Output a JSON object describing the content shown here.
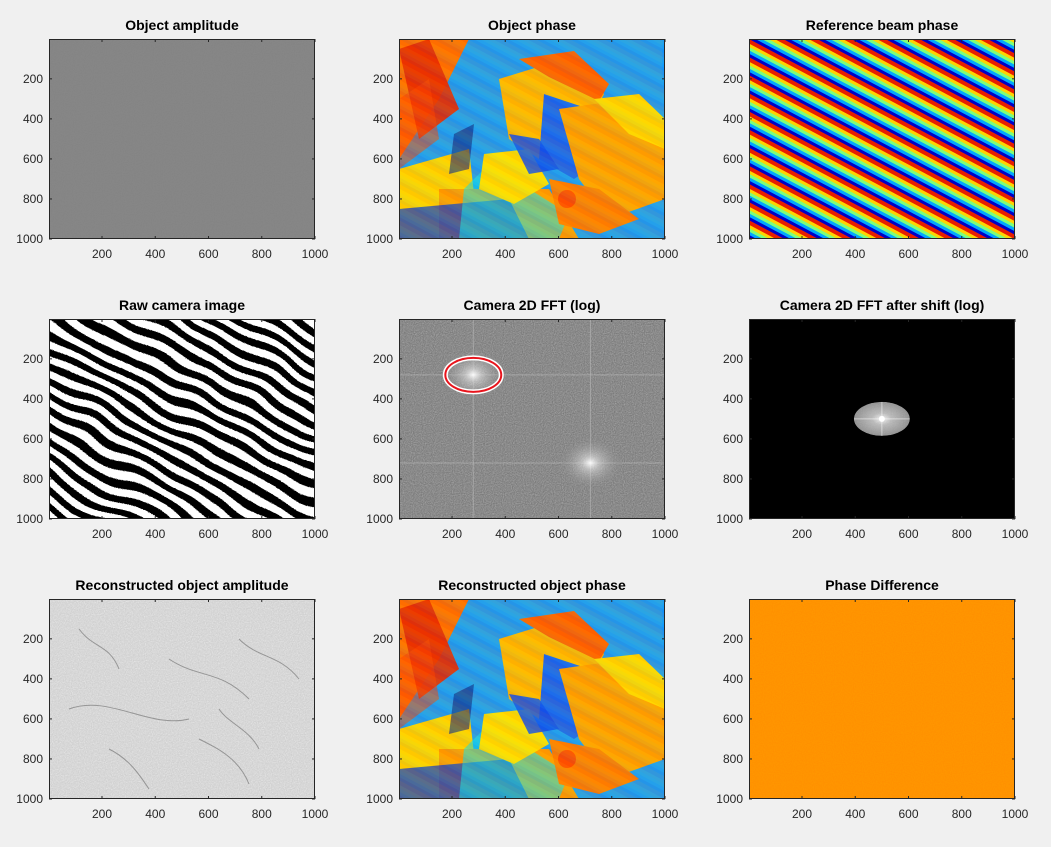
{
  "figure": {
    "background": "#f0f0f0"
  },
  "chart_data": [
    {
      "type": "heatmap",
      "title": "Object amplitude",
      "xticks": [
        200,
        400,
        600,
        800,
        1000
      ],
      "yticks": [
        200,
        400,
        600,
        800,
        1000
      ],
      "xlim": [
        1,
        1000
      ],
      "ylim": [
        1,
        1000
      ],
      "y_direction": "reverse",
      "colormap": "gray",
      "appearance": "uniform-mid-gray"
    },
    {
      "type": "heatmap",
      "title": "Object phase",
      "xticks": [
        200,
        400,
        600,
        800,
        1000
      ],
      "yticks": [
        200,
        400,
        600,
        800,
        1000
      ],
      "xlim": [
        1,
        1000
      ],
      "ylim": [
        1,
        1000
      ],
      "y_direction": "reverse",
      "colormap": "jet",
      "appearance": "photo-image"
    },
    {
      "type": "heatmap",
      "title": "Reference beam phase",
      "xticks": [
        200,
        400,
        600,
        800,
        1000
      ],
      "yticks": [
        200,
        400,
        600,
        800,
        1000
      ],
      "xlim": [
        1,
        1000
      ],
      "ylim": [
        1,
        1000
      ],
      "y_direction": "reverse",
      "colormap": "jet",
      "appearance": "diagonal-fringes"
    },
    {
      "type": "heatmap",
      "title": "Raw camera image",
      "xticks": [
        200,
        400,
        600,
        800,
        1000
      ],
      "yticks": [
        200,
        400,
        600,
        800,
        1000
      ],
      "xlim": [
        1,
        1000
      ],
      "ylim": [
        1,
        1000
      ],
      "y_direction": "reverse",
      "colormap": "gray",
      "appearance": "interference-fringes"
    },
    {
      "type": "heatmap",
      "title": "Camera 2D FFT (log)",
      "xticks": [
        200,
        400,
        600,
        800,
        1000
      ],
      "yticks": [
        200,
        400,
        600,
        800,
        1000
      ],
      "xlim": [
        1,
        1000
      ],
      "ylim": [
        1,
        1000
      ],
      "y_direction": "reverse",
      "colormap": "gray",
      "appearance": "fft-noise",
      "peaks": [
        {
          "x": 280,
          "y": 280
        },
        {
          "x": 720,
          "y": 720
        }
      ],
      "circle": {
        "cx": 280,
        "cy": 280,
        "rx": 105,
        "ry": 85,
        "color": "#e8141c"
      }
    },
    {
      "type": "heatmap",
      "title": "Camera 2D FFT after shift (log)",
      "xticks": [
        200,
        400,
        600,
        800,
        1000
      ],
      "yticks": [
        200,
        400,
        600,
        800,
        1000
      ],
      "xlim": [
        1,
        1000
      ],
      "ylim": [
        1,
        1000
      ],
      "y_direction": "reverse",
      "colormap": "gray",
      "appearance": "masked-fft",
      "ellipse": {
        "cx": 500,
        "cy": 500,
        "rx": 105,
        "ry": 85
      }
    },
    {
      "type": "heatmap",
      "title": "Reconstructed object amplitude",
      "xticks": [
        200,
        400,
        600,
        800,
        1000
      ],
      "yticks": [
        200,
        400,
        600,
        800,
        1000
      ],
      "xlim": [
        1,
        1000
      ],
      "ylim": [
        1,
        1000
      ],
      "y_direction": "reverse",
      "colormap": "gray",
      "appearance": "light-gray-texture"
    },
    {
      "type": "heatmap",
      "title": "Reconstructed object phase",
      "xticks": [
        200,
        400,
        600,
        800,
        1000
      ],
      "yticks": [
        200,
        400,
        600,
        800,
        1000
      ],
      "xlim": [
        1,
        1000
      ],
      "ylim": [
        1,
        1000
      ],
      "y_direction": "reverse",
      "colormap": "jet",
      "appearance": "photo-image"
    },
    {
      "type": "heatmap",
      "title": "Phase Difference",
      "xticks": [
        200,
        400,
        600,
        800,
        1000
      ],
      "yticks": [
        200,
        400,
        600,
        800,
        1000
      ],
      "xlim": [
        1,
        1000
      ],
      "ylim": [
        1,
        1000
      ],
      "y_direction": "reverse",
      "colormap": "jet",
      "appearance": "uniform-orange",
      "fill_color": "#ff7a00"
    }
  ]
}
